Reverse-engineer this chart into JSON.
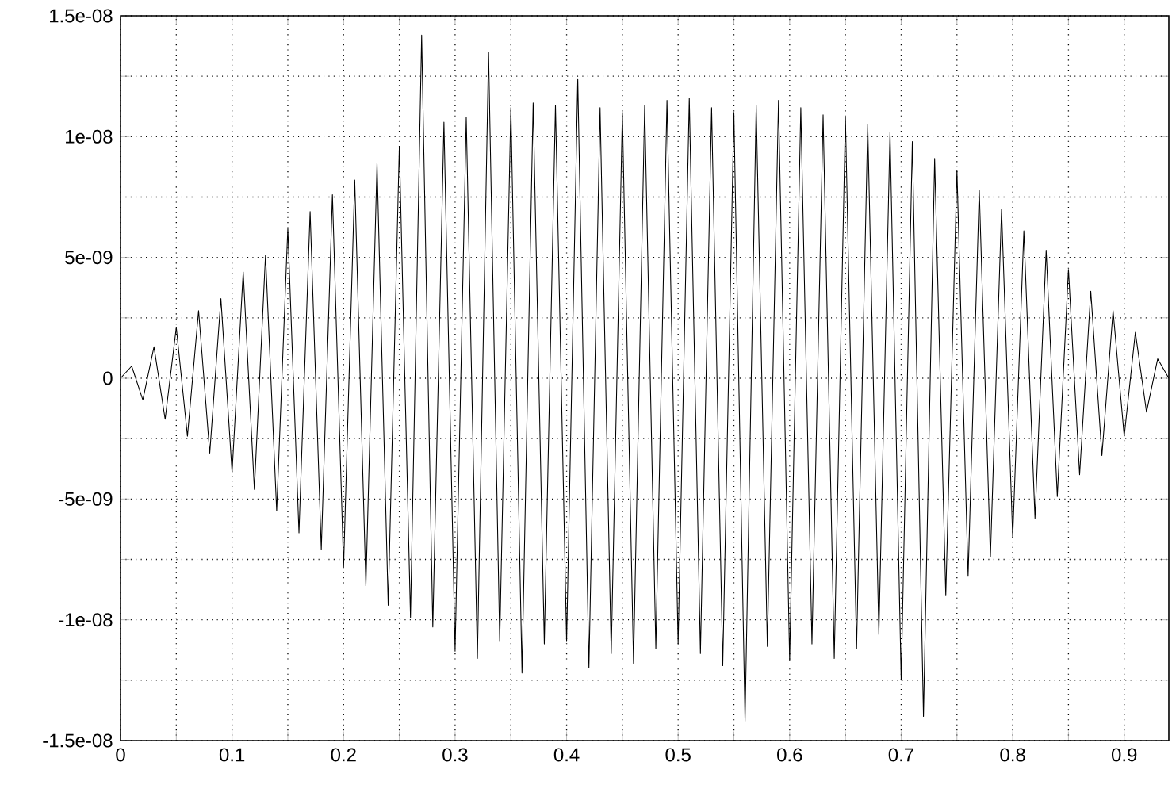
{
  "chart_data": {
    "type": "line",
    "grid": true,
    "xlim": [
      0,
      0.94
    ],
    "ylim": [
      -1.5e-08,
      1.5e-08
    ],
    "xticks": [
      0,
      {
        "value": 0.05,
        "label": null
      },
      {
        "value": 0.1,
        "label": "0.1"
      },
      {
        "value": 0.15,
        "label": null
      },
      {
        "value": 0.2,
        "label": "0.2"
      },
      {
        "value": 0.25,
        "label": null
      },
      {
        "value": 0.3,
        "label": "0.3"
      },
      {
        "value": 0.35,
        "label": null
      },
      {
        "value": 0.4,
        "label": "0.4"
      },
      {
        "value": 0.45,
        "label": null
      },
      {
        "value": 0.5,
        "label": "0.5"
      },
      {
        "value": 0.55,
        "label": null
      },
      {
        "value": 0.6,
        "label": "0.6"
      },
      {
        "value": 0.65,
        "label": null
      },
      {
        "value": 0.7,
        "label": "0.7"
      },
      {
        "value": 0.75,
        "label": null
      },
      {
        "value": 0.8,
        "label": "0.8"
      },
      {
        "value": 0.85,
        "label": null
      },
      {
        "value": 0.9,
        "label": "0.9"
      }
    ],
    "yticks": [
      {
        "value": -1.5e-08,
        "label": "-1.5e-08"
      },
      {
        "value": -1.25e-08,
        "label": null
      },
      {
        "value": -1e-08,
        "label": "-1e-08"
      },
      {
        "value": -7.5e-09,
        "label": null
      },
      {
        "value": -5e-09,
        "label": "-5e-09"
      },
      {
        "value": -2.5e-09,
        "label": null
      },
      0,
      {
        "value": 2.5e-09,
        "label": null
      },
      {
        "value": 5e-09,
        "label": "5e-09"
      },
      {
        "value": 7.5e-09,
        "label": null
      },
      {
        "value": 1e-08,
        "label": "1e-08"
      },
      {
        "value": 1.25e-08,
        "label": null
      },
      {
        "value": 1.5e-08,
        "label": "1.5e-08"
      }
    ],
    "series": [
      {
        "color": "#000000",
        "x": [
          0,
          0.01,
          0.02,
          0.03,
          0.04,
          0.05,
          0.06,
          0.07,
          0.08,
          0.09,
          0.1,
          0.11,
          0.12,
          0.13,
          0.14,
          0.15,
          0.16,
          0.17,
          0.18,
          0.19,
          0.2,
          0.21,
          0.22,
          0.23,
          0.24,
          0.25,
          0.26,
          0.27,
          0.28,
          0.29,
          0.3,
          0.31,
          0.32,
          0.33,
          0.34,
          0.35,
          0.36,
          0.37,
          0.38,
          0.39,
          0.4,
          0.41,
          0.42,
          0.43,
          0.44,
          0.45,
          0.46,
          0.47,
          0.48,
          0.49,
          0.5,
          0.51,
          0.52,
          0.53,
          0.54,
          0.55,
          0.56,
          0.57,
          0.58,
          0.59,
          0.6,
          0.61,
          0.62,
          0.63,
          0.64,
          0.65,
          0.66,
          0.67,
          0.68,
          0.69,
          0.7,
          0.71,
          0.72,
          0.73,
          0.74,
          0.75,
          0.76,
          0.77,
          0.78,
          0.79,
          0.8,
          0.81,
          0.82,
          0.83,
          0.84,
          0.85,
          0.86,
          0.87,
          0.88,
          0.89,
          0.9,
          0.91,
          0.92,
          0.93,
          0.94
        ],
        "values": [
          0,
          5e-10,
          -9e-10,
          1.3e-09,
          -1.7e-09,
          2.1e-09,
          -2.4e-09,
          2.8e-09,
          -3.1e-09,
          3.3e-09,
          -3.9e-09,
          4.4e-09,
          -4.6e-09,
          5.1e-09,
          -5.5e-09,
          6.2e-09,
          -6.4e-09,
          6.9e-09,
          -7.1e-09,
          7.6e-09,
          -7.8e-09,
          8.2e-09,
          -8.6e-09,
          8.9e-09,
          -9.4e-09,
          9.6e-09,
          -9.9e-09,
          1.42e-08,
          -1.03e-08,
          1.06e-08,
          -1.13e-08,
          1.08e-08,
          -1.16e-08,
          1.35e-08,
          -1.09e-08,
          1.12e-08,
          -1.22e-08,
          1.14e-08,
          -1.1e-08,
          1.13e-08,
          -1.09e-08,
          1.24e-08,
          -1.2e-08,
          1.12e-08,
          -1.14e-08,
          1.1e-08,
          -1.18e-08,
          1.13e-08,
          -1.12e-08,
          1.15e-08,
          -1.1e-08,
          1.16e-08,
          -1.14e-08,
          1.12e-08,
          -1.19e-08,
          1.1e-08,
          -1.42e-08,
          1.13e-08,
          -1.11e-08,
          1.15e-08,
          -1.17e-08,
          1.12e-08,
          -1.1e-08,
          1.09e-08,
          -1.16e-08,
          1.08e-08,
          -1.12e-08,
          1.05e-08,
          -1.06e-08,
          1.02e-08,
          -1.25e-08,
          9.8e-09,
          -1.4e-08,
          9.1e-09,
          -9e-09,
          8.6e-09,
          -8.2e-09,
          7.8e-09,
          -7.4e-09,
          7e-09,
          -6.6e-09,
          6.1e-09,
          -5.8e-09,
          5.3e-09,
          -4.9e-09,
          4.5e-09,
          -4e-09,
          3.6e-09,
          -3.2e-09,
          2.8e-09,
          -2.4e-09,
          1.9e-09,
          -1.4e-09,
          8e-10,
          0
        ]
      }
    ]
  }
}
